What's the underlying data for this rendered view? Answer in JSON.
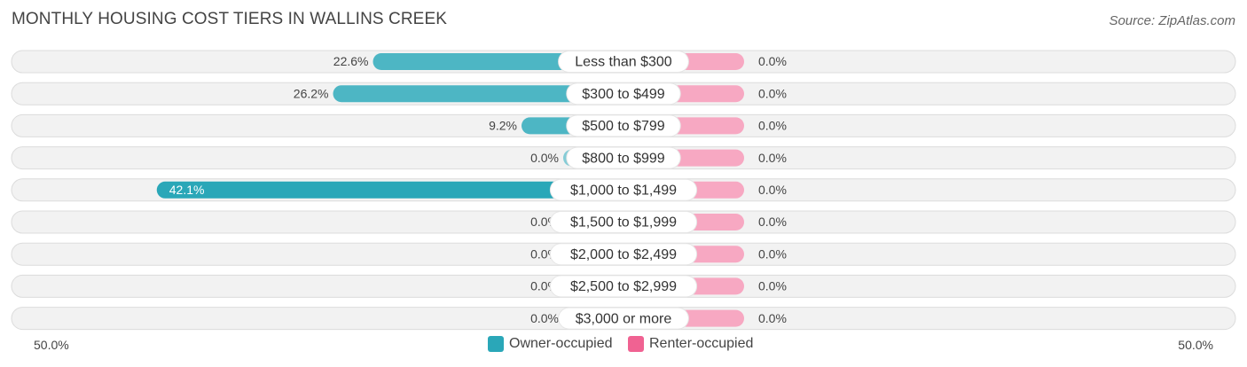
{
  "header": {
    "title": "MONTHLY HOUSING COST TIERS IN WALLINS CREEK",
    "source": "Source: ZipAtlas.com"
  },
  "colors": {
    "owner_dark": "#2aa7b8",
    "owner_light": "#85ccd6",
    "renter": "#f7a8c2",
    "renter_legend": "#f06292",
    "owner_legend": "#2aa7b8",
    "row_bg": "#f2f2f2",
    "row_border": "#dcdcdc"
  },
  "chart_data": {
    "type": "bar",
    "title": "MONTHLY HOUSING COST TIERS IN WALLINS CREEK",
    "orientation": "horizontal-diverging",
    "categories": [
      "Less than $300",
      "$300 to $499",
      "$500 to $799",
      "$800 to $999",
      "$1,000 to $1,499",
      "$1,500 to $1,999",
      "$2,000 to $2,499",
      "$2,500 to $2,999",
      "$3,000 or more"
    ],
    "series": [
      {
        "name": "Owner-occupied",
        "values": [
          22.6,
          26.2,
          9.2,
          0.0,
          42.1,
          0.0,
          0.0,
          0.0,
          0.0
        ],
        "labels": [
          "22.6%",
          "26.2%",
          "9.2%",
          "0.0%",
          "42.1%",
          "0.0%",
          "0.0%",
          "0.0%",
          "0.0%"
        ]
      },
      {
        "name": "Renter-occupied",
        "values": [
          0.0,
          0.0,
          0.0,
          0.0,
          0.0,
          0.0,
          0.0,
          0.0,
          0.0
        ],
        "labels": [
          "0.0%",
          "0.0%",
          "0.0%",
          "0.0%",
          "0.0%",
          "0.0%",
          "0.0%",
          "0.0%",
          "0.0%"
        ]
      }
    ],
    "xlim": [
      -50,
      50
    ],
    "axis_labels": {
      "left": "50.0%",
      "right": "50.0%"
    },
    "legend_position": "bottom-center"
  }
}
